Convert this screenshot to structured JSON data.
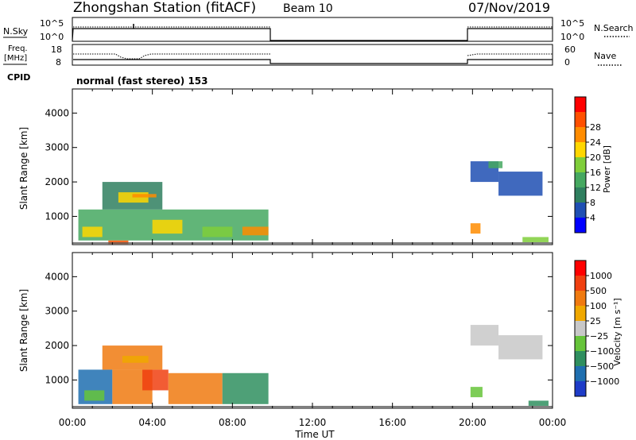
{
  "header": {
    "title": "Zhongshan Station (fitACF)",
    "beam": "Beam 10",
    "date": "07/Nov/2019"
  },
  "panel_labels": {
    "nsky": "N.Sky",
    "nsky_top": "10^5",
    "nsky_bottom": "10^0",
    "nsearch": "N.Search",
    "nsearch_top": "10^5",
    "nsearch_bottom": "10^0",
    "freq_line1": "Freq.",
    "freq_line2": "[MHz]",
    "freq_top": "18",
    "freq_bottom": "8",
    "nave": "Nave",
    "nave_top": "60",
    "nave_bottom": "0",
    "cpid": "CPID",
    "cpid_text": "normal (fast stereo) 153"
  },
  "colors": {
    "power_scale": [
      "#0000ff",
      "#1f4fb3",
      "#2f7f5f",
      "#45a860",
      "#7fce3a",
      "#ffd700",
      "#ff8c00",
      "#ff5000",
      "#ff0000"
    ],
    "velocity_scale": [
      "#1e3cc8",
      "#1f6fb0",
      "#2f8f5f",
      "#66c43a",
      "#c8c8c8",
      "#f0a800",
      "#f07a10",
      "#f04010",
      "#ff0000"
    ]
  },
  "chart_data": [
    {
      "type": "heatmap",
      "name": "power",
      "xlabel": "",
      "ylabel": "Slant Range [km]",
      "x_ticks": [
        "00:00",
        "04:00",
        "08:00",
        "12:00",
        "16:00",
        "20:00",
        "00:00"
      ],
      "y_ticks": [
        "1000",
        "2000",
        "3000",
        "4000"
      ],
      "ylim": [
        180,
        4700
      ],
      "colorbar_label": "Power [dB]",
      "colorbar_ticks": [
        "4",
        "8",
        "12",
        "16",
        "20",
        "24",
        "28"
      ],
      "blocks": [
        {
          "t0": 0.3,
          "t1": 9.8,
          "r0": 300,
          "r1": 1200,
          "lvl": 3
        },
        {
          "t0": 1.5,
          "t1": 4.5,
          "r0": 1200,
          "r1": 2000,
          "lvl": 2
        },
        {
          "t0": 2.3,
          "t1": 3.8,
          "r0": 1400,
          "r1": 1700,
          "lvl": 5
        },
        {
          "t0": 3.0,
          "t1": 4.2,
          "r0": 1550,
          "r1": 1650,
          "lvl": 6
        },
        {
          "t0": 0.5,
          "t1": 1.5,
          "r0": 400,
          "r1": 700,
          "lvl": 5
        },
        {
          "t0": 4.0,
          "t1": 5.5,
          "r0": 500,
          "r1": 900,
          "lvl": 5
        },
        {
          "t0": 6.5,
          "t1": 8.0,
          "r0": 400,
          "r1": 700,
          "lvl": 4
        },
        {
          "t0": 8.5,
          "t1": 9.8,
          "r0": 450,
          "r1": 700,
          "lvl": 6
        },
        {
          "t0": 1.8,
          "t1": 2.8,
          "r0": 200,
          "r1": 300,
          "lvl": 7
        },
        {
          "t0": 19.9,
          "t1": 21.3,
          "r0": 2000,
          "r1": 2600,
          "lvl": 1
        },
        {
          "t0": 21.3,
          "t1": 23.5,
          "r0": 1600,
          "r1": 2300,
          "lvl": 1
        },
        {
          "t0": 20.8,
          "t1": 21.5,
          "r0": 2400,
          "r1": 2600,
          "lvl": 3
        },
        {
          "t0": 19.9,
          "t1": 20.4,
          "r0": 500,
          "r1": 800,
          "lvl": 6
        },
        {
          "t0": 22.5,
          "t1": 23.8,
          "r0": 250,
          "r1": 400,
          "lvl": 4
        }
      ]
    },
    {
      "type": "heatmap",
      "name": "velocity",
      "xlabel": "Time UT",
      "ylabel": "Slant Range [km]",
      "x_ticks": [
        "00:00",
        "04:00",
        "08:00",
        "12:00",
        "16:00",
        "20:00",
        "00:00"
      ],
      "y_ticks": [
        "1000",
        "2000",
        "3000",
        "4000"
      ],
      "ylim": [
        180,
        4700
      ],
      "colorbar_label": "Velocity [m s⁻¹]",
      "colorbar_ticks": [
        "1000",
        "500",
        "100",
        "25",
        "−25",
        "−100",
        "−500",
        "−1000"
      ],
      "blocks": [
        {
          "t0": 0.3,
          "t1": 2.0,
          "r0": 300,
          "r1": 1300,
          "lvl": 1
        },
        {
          "t0": 2.0,
          "t1": 4.0,
          "r0": 300,
          "r1": 1300,
          "lvl": 6
        },
        {
          "t0": 3.5,
          "t1": 4.8,
          "r0": 700,
          "r1": 1300,
          "lvl": 7
        },
        {
          "t0": 4.8,
          "t1": 7.5,
          "r0": 300,
          "r1": 1200,
          "lvl": 6
        },
        {
          "t0": 7.5,
          "t1": 9.8,
          "r0": 300,
          "r1": 1200,
          "lvl": 2
        },
        {
          "t0": 1.5,
          "t1": 4.5,
          "r0": 1300,
          "r1": 2000,
          "lvl": 6
        },
        {
          "t0": 2.5,
          "t1": 3.8,
          "r0": 1500,
          "r1": 1700,
          "lvl": 5
        },
        {
          "t0": 0.6,
          "t1": 1.6,
          "r0": 400,
          "r1": 700,
          "lvl": 3
        },
        {
          "t0": 19.9,
          "t1": 21.3,
          "r0": 2000,
          "r1": 2600,
          "lvl": 4
        },
        {
          "t0": 21.3,
          "t1": 23.5,
          "r0": 1600,
          "r1": 2300,
          "lvl": 4
        },
        {
          "t0": 19.9,
          "t1": 20.5,
          "r0": 500,
          "r1": 800,
          "lvl": 3
        },
        {
          "t0": 22.8,
          "t1": 23.8,
          "r0": 250,
          "r1": 400,
          "lvl": 2
        }
      ]
    }
  ]
}
